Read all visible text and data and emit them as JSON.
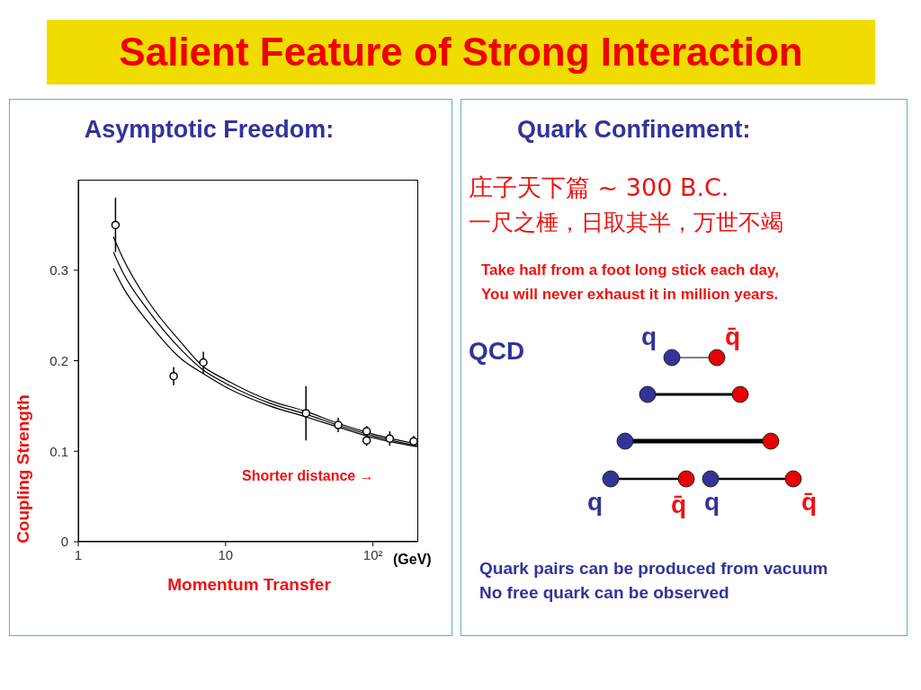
{
  "chart_data": [
    {
      "type": "scatter",
      "title": "Salient Feature of Strong Interaction",
      "subtitle": "Asymptotic Freedom:",
      "xlabel": "Momentum Transfer",
      "ylabel": "Coupling Strength",
      "log": "x",
      "xlim": [
        1,
        200
      ],
      "xticks": [
        1,
        10,
        {
          "value": 100,
          "label": "10²"
        }
      ],
      "ylim": [
        0,
        0.4
      ],
      "yticks": [
        0,
        0.1,
        0.2,
        0.3
      ],
      "annotations": [
        "(GeV)",
        "Shorter distance →"
      ],
      "series": [
        {
          "type": "scatter",
          "color": "#000000",
          "marker": "circle",
          "x": [
            1.79,
            4.44,
            7.06,
            35.1,
            58.1,
            90.6,
            90.6,
            130,
            189
          ],
          "values": [
            0.35,
            0.183,
            0.198,
            0.142,
            0.129,
            0.122,
            0.112,
            0.114,
            0.111
          ],
          "errors": [
            0.03,
            0.01,
            0.012,
            0.03,
            0.008,
            0.006,
            0.006,
            0.008,
            0.006
          ]
        },
        {
          "type": "line",
          "color": "#000000",
          "marker": "none",
          "x": [
            1.73,
            2,
            3,
            5,
            7,
            10,
            20,
            35,
            60,
            100,
            200
          ],
          "values": [
            0.337,
            0.314,
            0.265,
            0.22,
            0.194,
            0.179,
            0.156,
            0.144,
            0.13,
            0.119,
            0.108
          ]
        },
        {
          "type": "line",
          "color": "#000000",
          "marker": "none",
          "x": [
            1.73,
            2,
            3,
            5,
            7,
            10,
            20,
            35,
            60,
            100,
            200
          ],
          "values": [
            0.32,
            0.298,
            0.255,
            0.212,
            0.19,
            0.175,
            0.153,
            0.141,
            0.128,
            0.117,
            0.106
          ]
        },
        {
          "type": "line",
          "color": "#000000",
          "marker": "none",
          "x": [
            1.73,
            2,
            3,
            5,
            7,
            10,
            20,
            35,
            60,
            100,
            200
          ],
          "values": [
            0.302,
            0.282,
            0.242,
            0.202,
            0.186,
            0.171,
            0.15,
            0.138,
            0.126,
            0.115,
            0.105
          ]
        }
      ]
    },
    {
      "type": "other",
      "title": "Quark Confinement:",
      "annotations": [
        "庄子天下篇 ~ 300 B.C.",
        "一尺之棰，日取其半，万世不竭",
        "Take half from a foot long stick each day,",
        "You will never exhaust it in million years.",
        "QCD",
        "q",
        "q̄",
        "q",
        "q̄",
        "q",
        "q̄",
        "Quark pairs can be produced from vacuum",
        "No free quark can be observed"
      ]
    }
  ]
}
